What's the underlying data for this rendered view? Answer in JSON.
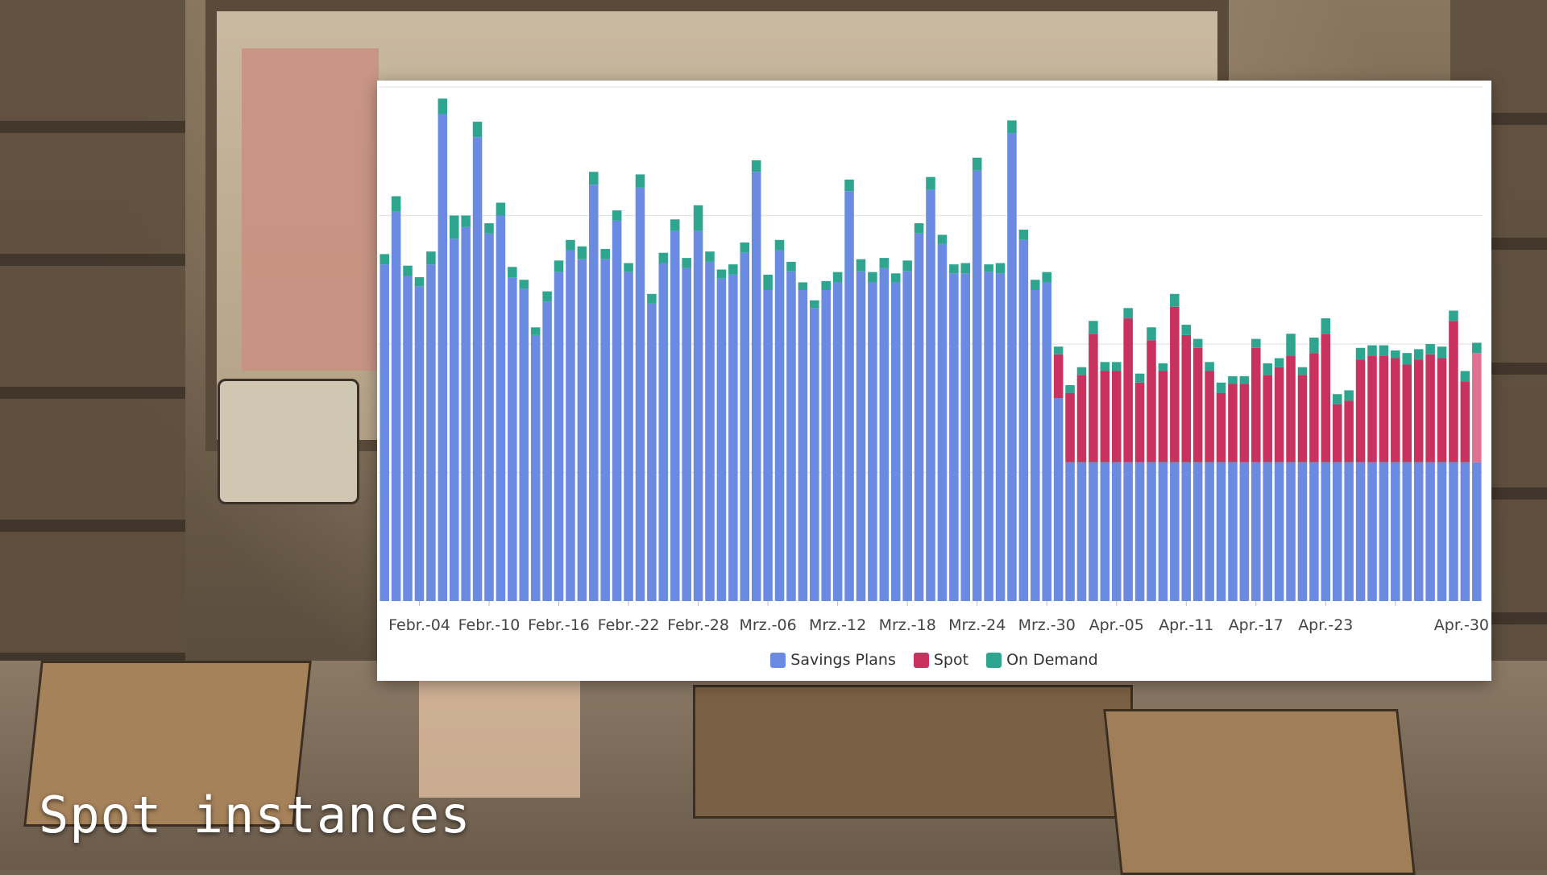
{
  "slide": {
    "caption": "Spot instances"
  },
  "colors": {
    "savings_plans": "#6b8be3",
    "spot": "#c9325e",
    "on_demand": "#2ea68f",
    "spot_highlight": "#e07090"
  },
  "chart_data": {
    "type": "bar",
    "stacked": true,
    "ylim": [
      0,
      4
    ],
    "grid": true,
    "legend_position": "bottom",
    "x_tick_labels": [
      "Febr.-04",
      "Febr.-10",
      "Febr.-16",
      "Febr.-22",
      "Febr.-28",
      "Mrz.-06",
      "Mrz.-12",
      "Mrz.-18",
      "Mrz.-24",
      "Mrz.-30",
      "Apr.-05",
      "Apr.-11",
      "Apr.-17",
      "Apr.-23",
      "Apr.-30"
    ],
    "series": [
      {
        "name": "Savings Plans",
        "values": [
          2.62,
          3.03,
          2.53,
          2.45,
          2.62,
          3.79,
          2.82,
          2.91,
          3.61,
          2.86,
          3.0,
          2.52,
          2.43,
          2.07,
          2.33,
          2.56,
          2.73,
          2.66,
          3.24,
          2.66,
          2.96,
          2.56,
          3.22,
          2.32,
          2.63,
          2.88,
          2.59,
          2.88,
          2.64,
          2.51,
          2.54,
          2.71,
          3.34,
          2.42,
          2.73,
          2.57,
          2.42,
          2.28,
          2.42,
          2.48,
          3.19,
          2.57,
          2.48,
          2.59,
          2.48,
          2.57,
          2.86,
          3.2,
          2.78,
          2.55,
          2.55,
          3.35,
          2.56,
          2.55,
          3.64,
          2.81,
          2.42,
          2.48,
          1.58,
          1.08,
          1.08,
          1.08,
          1.08,
          1.08,
          1.08,
          1.08,
          1.08,
          1.08,
          1.08,
          1.08,
          1.08,
          1.08,
          1.08,
          1.08,
          1.08,
          1.08,
          1.08,
          1.08,
          1.08,
          1.08,
          1.08,
          1.08,
          1.08,
          1.08,
          1.08,
          1.08,
          1.08,
          1.08,
          1.08,
          1.08,
          1.08,
          1.08,
          1.08,
          1.08,
          1.08
        ]
      },
      {
        "name": "Spot",
        "values": [
          0,
          0,
          0,
          0,
          0,
          0,
          0,
          0,
          0,
          0,
          0,
          0,
          0,
          0,
          0,
          0,
          0,
          0,
          0,
          0,
          0,
          0,
          0,
          0,
          0,
          0,
          0,
          0,
          0,
          0,
          0,
          0,
          0,
          0,
          0,
          0,
          0,
          0,
          0,
          0,
          0,
          0,
          0,
          0,
          0,
          0,
          0,
          0,
          0,
          0,
          0,
          0,
          0,
          0,
          0,
          0,
          0,
          0,
          0.34,
          0.54,
          0.68,
          1.0,
          0.71,
          0.71,
          1.12,
          0.62,
          0.95,
          0.71,
          1.21,
          0.99,
          0.89,
          0.71,
          0.54,
          0.61,
          0.61,
          0.89,
          0.68,
          0.74,
          0.83,
          0.68,
          0.85,
          1.0,
          0.45,
          0.48,
          0.8,
          0.83,
          0.83,
          0.81,
          0.76,
          0.8,
          0.84,
          0.81,
          1.1,
          0.63,
          0.85
        ]
      },
      {
        "name": "On Demand",
        "values": [
          0.08,
          0.12,
          0.08,
          0.07,
          0.1,
          0.12,
          0.18,
          0.09,
          0.12,
          0.08,
          0.1,
          0.08,
          0.07,
          0.06,
          0.08,
          0.09,
          0.08,
          0.1,
          0.1,
          0.08,
          0.08,
          0.07,
          0.1,
          0.07,
          0.08,
          0.09,
          0.08,
          0.2,
          0.08,
          0.07,
          0.08,
          0.08,
          0.09,
          0.12,
          0.08,
          0.07,
          0.06,
          0.06,
          0.07,
          0.08,
          0.09,
          0.09,
          0.08,
          0.08,
          0.07,
          0.08,
          0.08,
          0.1,
          0.07,
          0.07,
          0.08,
          0.1,
          0.06,
          0.08,
          0.1,
          0.08,
          0.08,
          0.08,
          0.06,
          0.06,
          0.06,
          0.1,
          0.07,
          0.07,
          0.08,
          0.07,
          0.1,
          0.06,
          0.1,
          0.08,
          0.07,
          0.07,
          0.08,
          0.06,
          0.06,
          0.07,
          0.09,
          0.07,
          0.17,
          0.06,
          0.12,
          0.12,
          0.08,
          0.08,
          0.09,
          0.08,
          0.08,
          0.06,
          0.09,
          0.08,
          0.08,
          0.09,
          0.08,
          0.08,
          0.08
        ]
      }
    ]
  }
}
